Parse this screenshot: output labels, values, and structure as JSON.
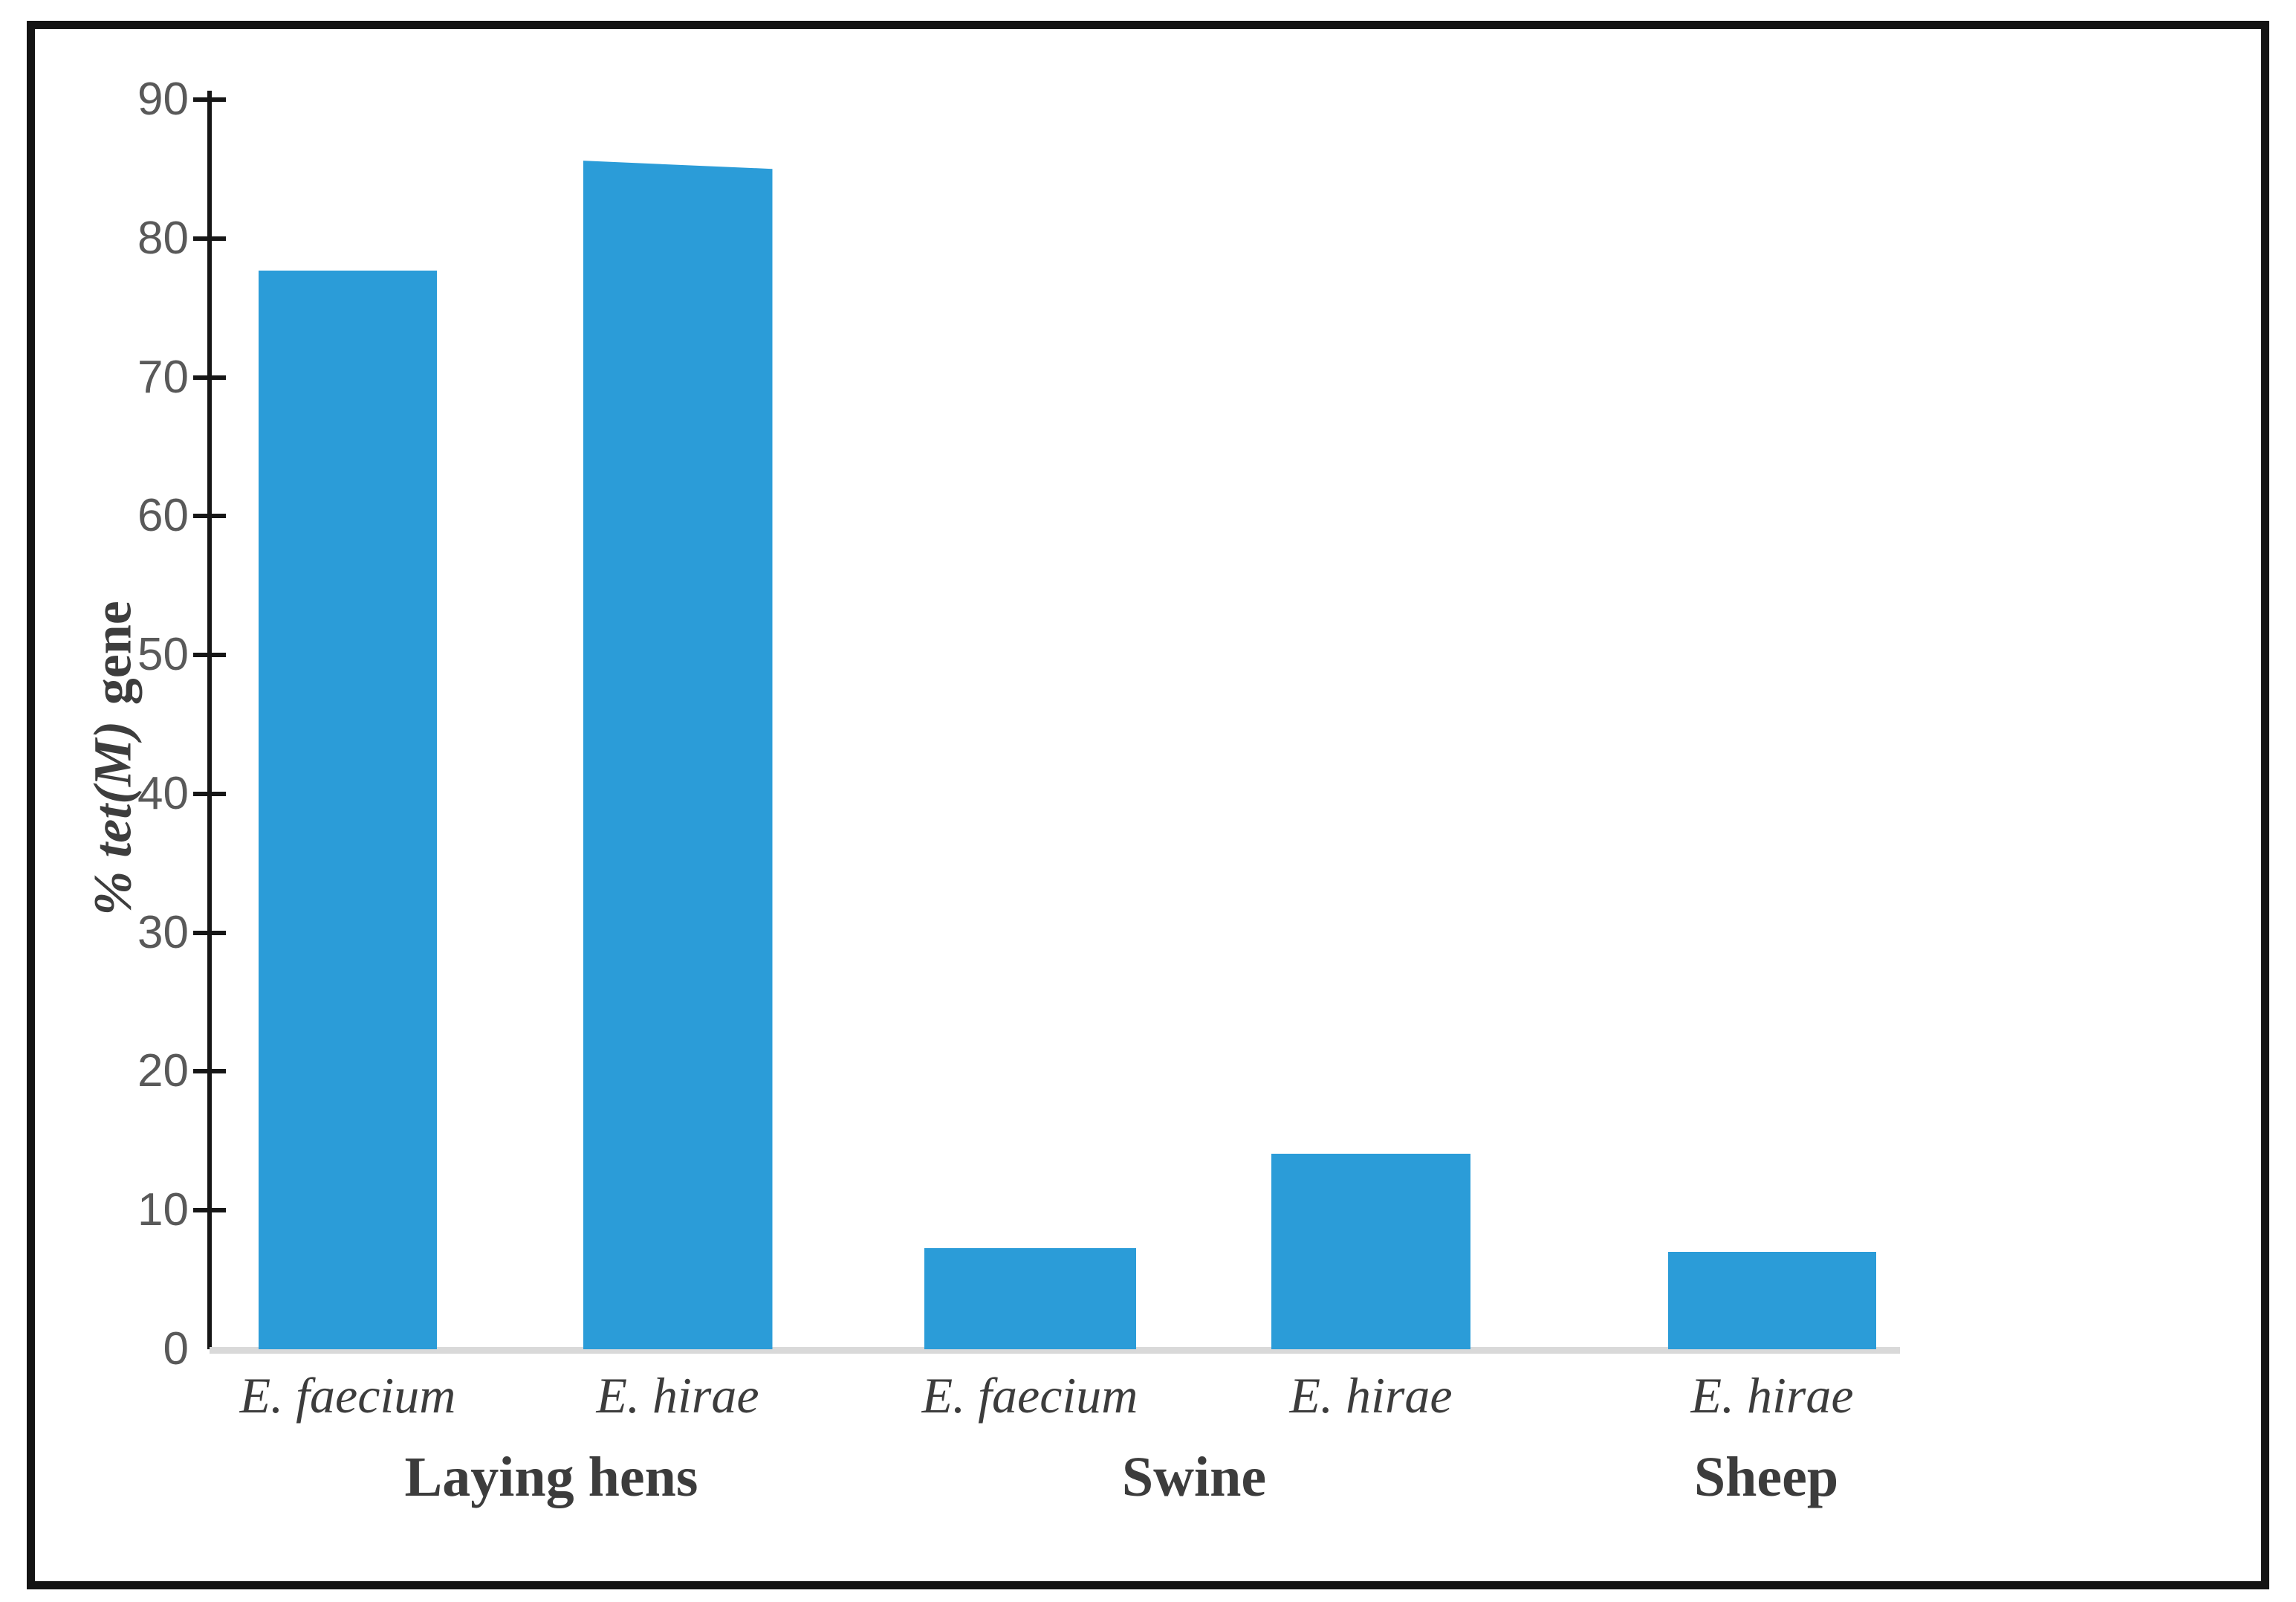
{
  "chart_data": {
    "type": "bar",
    "title": "",
    "ylabel": "% tet(M) gene",
    "ylabel_styled": {
      "italic_part": "% tet(M)",
      "bold_part": "gene"
    },
    "xlabel": "",
    "ylim": [
      0,
      90
    ],
    "ytick_step": 10,
    "yticks": [
      0,
      10,
      20,
      30,
      40,
      50,
      60,
      70,
      80,
      90
    ],
    "grid": false,
    "legend": "none",
    "bar_color": "#2b9cd8",
    "axis_color": "#161616",
    "tick_label_color": "#595959",
    "baseline_color": "#d9d9d9",
    "categories": [
      "E. faecium",
      "E. hirae",
      "E. faecium",
      "E. hirae",
      "E. hirae"
    ],
    "values": [
      77.7,
      85.6,
      7.3,
      14.1,
      7.0
    ],
    "groups": [
      {
        "label": "Laying hens",
        "bar_indexes": [
          0,
          1
        ]
      },
      {
        "label": "Swine",
        "bar_indexes": [
          2,
          3
        ]
      },
      {
        "label": "Sheep",
        "bar_indexes": [
          4
        ]
      }
    ]
  }
}
